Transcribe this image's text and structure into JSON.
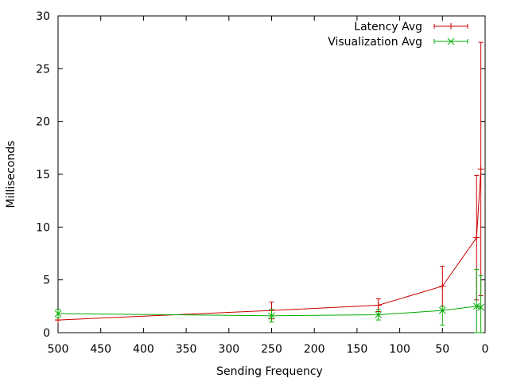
{
  "chart_data": {
    "type": "line",
    "title": "",
    "xlabel": "Sending Frequency",
    "ylabel": "Milliseconds",
    "xlim": [
      500,
      0
    ],
    "ylim": [
      0,
      30
    ],
    "x_reversed": true,
    "xticks": [
      500,
      450,
      400,
      350,
      300,
      250,
      200,
      150,
      100,
      50,
      0
    ],
    "yticks": [
      0,
      5,
      10,
      15,
      20,
      25,
      30
    ],
    "grid": false,
    "legend_position": "top-right",
    "series": [
      {
        "name": "Latency Avg",
        "color": "#cc0000",
        "marker": "plus",
        "points": [
          {
            "x": 500,
            "y": 1.2,
            "err": [
              1.2,
              1.2
            ]
          },
          {
            "x": 250,
            "y": 2.1,
            "err": [
              1.3,
              2.9
            ]
          },
          {
            "x": 125,
            "y": 2.6,
            "err": [
              2.0,
              3.2
            ]
          },
          {
            "x": 50,
            "y": 4.4,
            "err": [
              2.5,
              6.3
            ]
          },
          {
            "x": 10,
            "y": 9.0,
            "err": [
              3.1,
              14.9
            ]
          },
          {
            "x": 5,
            "y": 15.5,
            "err": [
              3.5,
              27.5
            ]
          }
        ]
      },
      {
        "name": "Visualization Avg",
        "color": "#00aa00",
        "marker": "cross",
        "points": [
          {
            "x": 500,
            "y": 1.8,
            "err": [
              1.4,
              2.2
            ]
          },
          {
            "x": 250,
            "y": 1.6,
            "err": [
              1.0,
              2.2
            ]
          },
          {
            "x": 125,
            "y": 1.7,
            "err": [
              1.2,
              2.2
            ]
          },
          {
            "x": 50,
            "y": 2.1,
            "err": [
              0.7,
              2.5
            ]
          },
          {
            "x": 10,
            "y": 2.5,
            "err": [
              0.0,
              6.0
            ]
          },
          {
            "x": 5,
            "y": 2.4,
            "err": [
              0.0,
              5.4
            ]
          }
        ]
      }
    ]
  }
}
